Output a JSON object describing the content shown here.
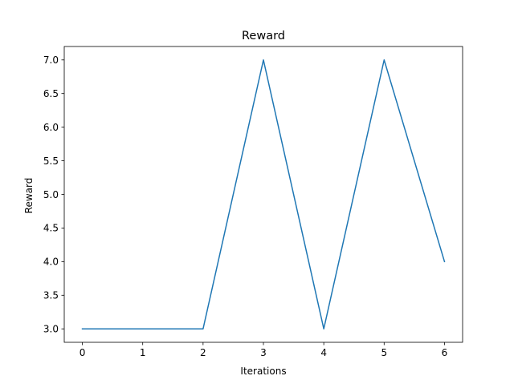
{
  "chart_data": {
    "type": "line",
    "title": "Reward",
    "xlabel": "Iterations",
    "ylabel": "Reward",
    "x": [
      0,
      1,
      2,
      3,
      4,
      5,
      6
    ],
    "series": [
      {
        "values": [
          3.0,
          3.0,
          3.0,
          7.0,
          3.0,
          7.0,
          4.0
        ],
        "color": "#1f77b4"
      }
    ],
    "xlim": [
      -0.3,
      6.3
    ],
    "ylim": [
      2.8,
      7.2
    ],
    "xticks": [
      0,
      1,
      2,
      3,
      4,
      5,
      6
    ],
    "xtick_labels": [
      "0",
      "1",
      "2",
      "3",
      "4",
      "5",
      "6"
    ],
    "yticks": [
      3.0,
      3.5,
      4.0,
      4.5,
      5.0,
      5.5,
      6.0,
      6.5,
      7.0
    ],
    "ytick_labels": [
      "3.0",
      "3.5",
      "4.0",
      "4.5",
      "5.0",
      "5.5",
      "6.0",
      "6.5",
      "7.0"
    ],
    "grid": false,
    "legend": "none"
  }
}
